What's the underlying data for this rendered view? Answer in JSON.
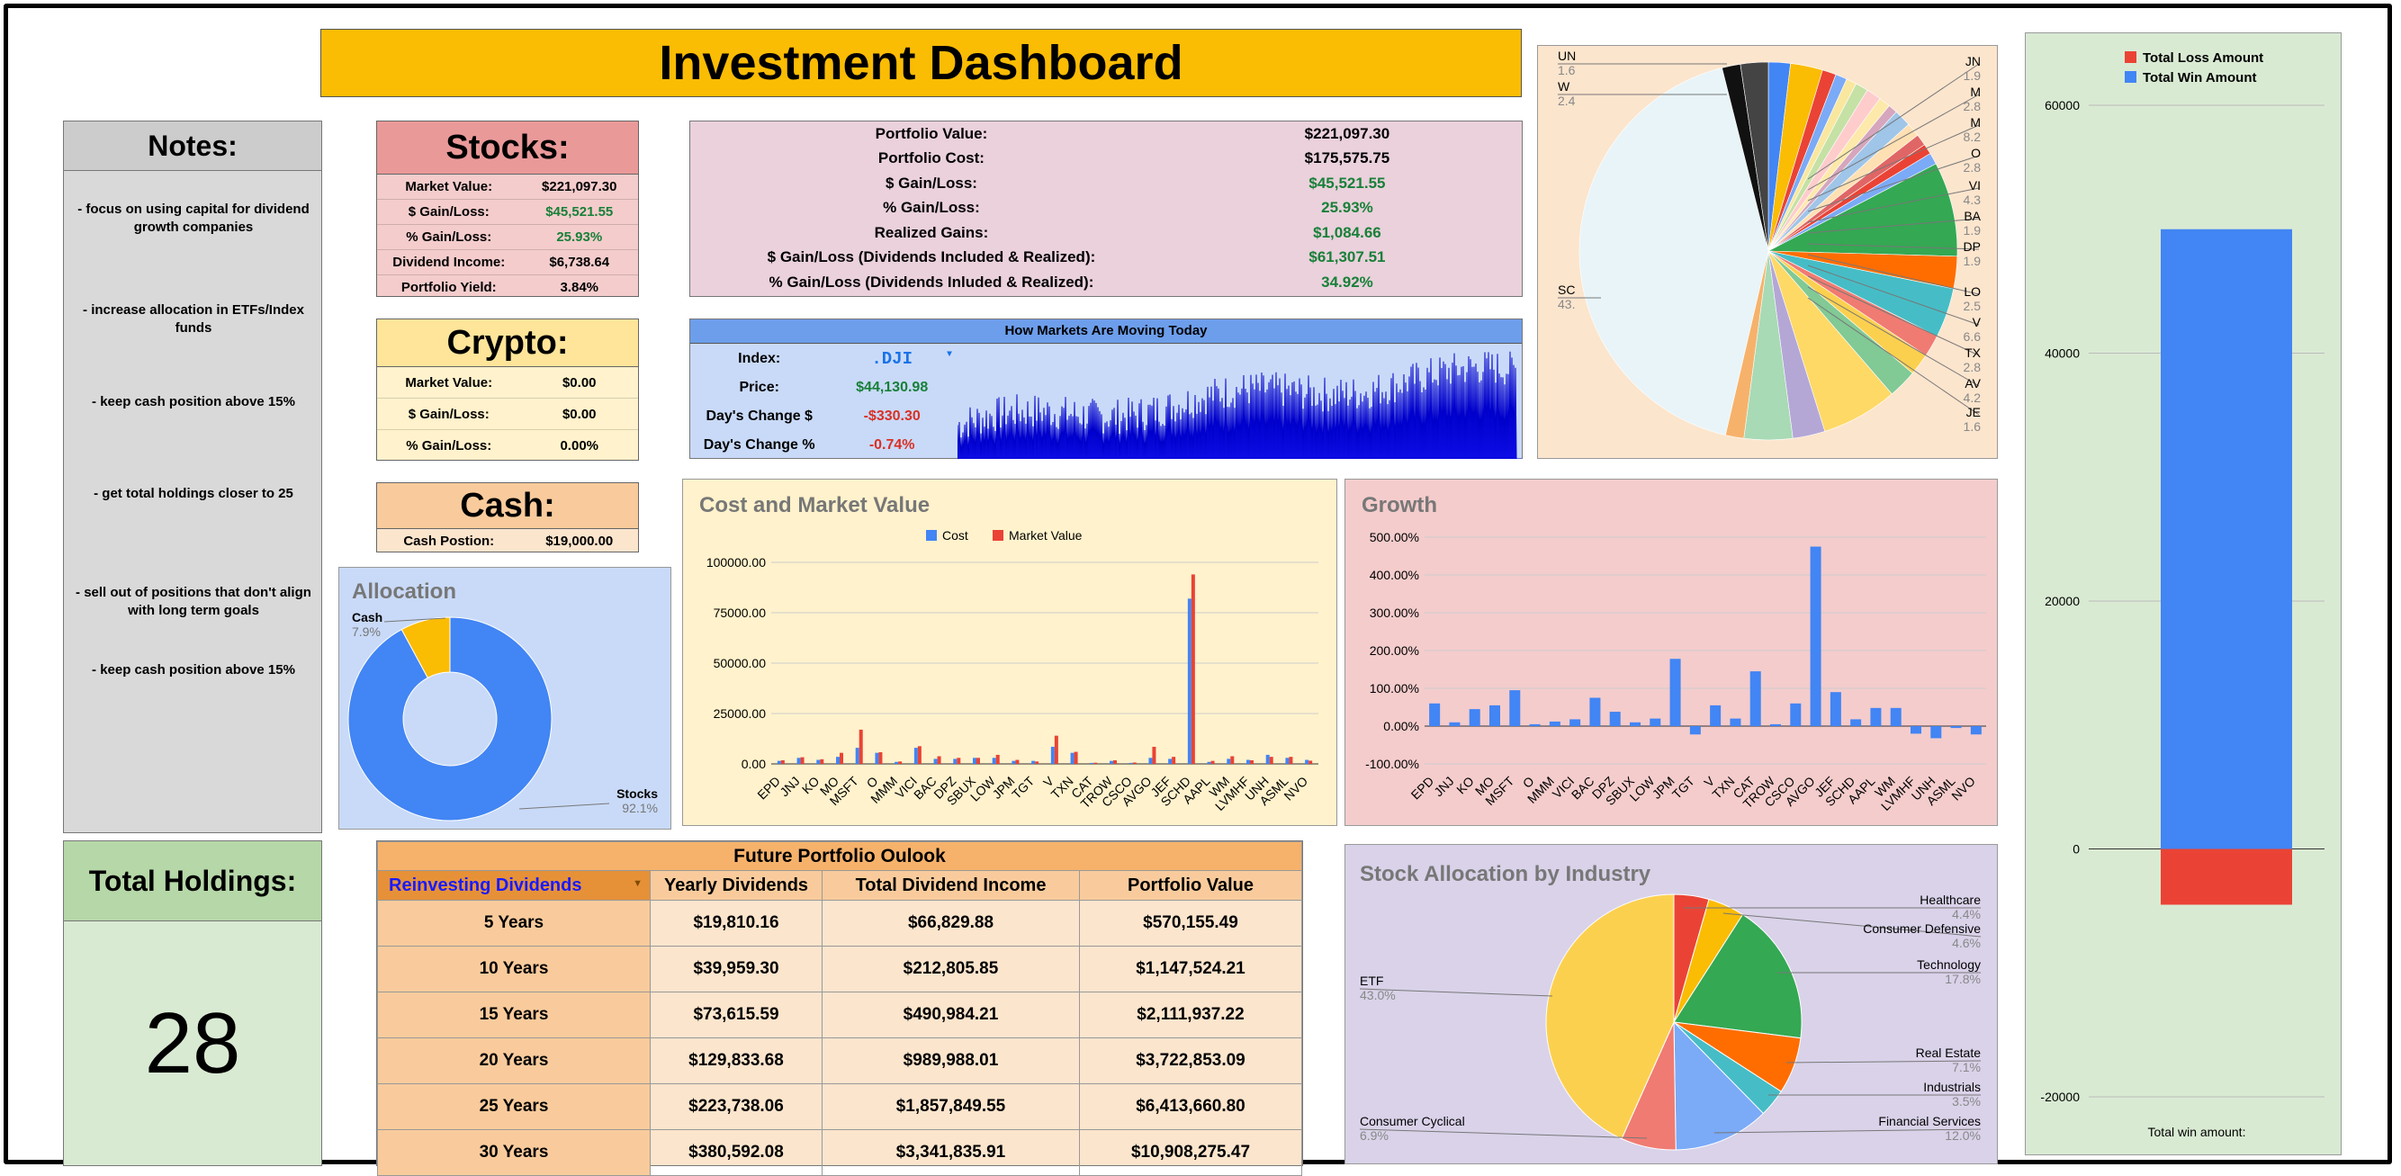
{
  "dashboard": {
    "title": "Investment Dashboard"
  },
  "notes": {
    "title": "Notes:",
    "items": [
      "- focus on using capital for dividend growth companies",
      "- increase allocation in ETFs/Index funds",
      "- keep cash position above 15%",
      "- get total holdings closer to 25",
      "- sell out of positions that don't align with long term goals",
      "- keep cash position above 15%"
    ]
  },
  "total_holdings": {
    "label": "Total Holdings:",
    "value": "28"
  },
  "stocks": {
    "title": "Stocks:",
    "rows": [
      {
        "k": "Market Value:",
        "v": "$221,097.30"
      },
      {
        "k": "$ Gain/Loss:",
        "v": "$45,521.55"
      },
      {
        "k": "% Gain/Loss:",
        "v": "25.93%"
      },
      {
        "k": "Dividend Income:",
        "v": "$6,738.64"
      },
      {
        "k": "Portfolio Yield:",
        "v": "3.84%"
      }
    ]
  },
  "crypto": {
    "title": "Crypto:",
    "rows": [
      {
        "k": "Market Value:",
        "v": "$0.00"
      },
      {
        "k": "$ Gain/Loss:",
        "v": "$0.00"
      },
      {
        "k": "% Gain/Loss:",
        "v": "0.00%"
      }
    ]
  },
  "cash": {
    "title": "Cash:",
    "row": {
      "k": "Cash Postion:",
      "v": "$19,000.00"
    }
  },
  "portfolio": {
    "rows": [
      {
        "k": "Portfolio Value:",
        "v": "$221,097.30"
      },
      {
        "k": "Portfolio Cost:",
        "v": "$175,575.75"
      },
      {
        "k": "$ Gain/Loss:",
        "v": "$45,521.55"
      },
      {
        "k": "% Gain/Loss:",
        "v": "25.93%"
      },
      {
        "k": "Realized Gains:",
        "v": "$1,084.66"
      },
      {
        "k": "$ Gain/Loss (Dividends Included & Realized):",
        "v": "$61,307.51"
      },
      {
        "k": "% Gain/Loss (Dividends Inluded & Realized):",
        "v": "34.92%"
      }
    ]
  },
  "markets": {
    "title": "How Markets Are Moving Today",
    "index_label": "Index:",
    "index_value": ".DJI",
    "price_label": "Price:",
    "price_value": "$44,130.98",
    "change_label": "Day's Change $",
    "change_value": "-$330.30",
    "changep_label": "Day's Change %",
    "changep_value": "-0.74%"
  },
  "colors": {
    "green": "#188038",
    "red": "#d93025",
    "blue": "#4285f4",
    "orange": "#fbbc04"
  },
  "future": {
    "title": "Future Portfolio Oulook",
    "mode": "Reinvesting Dividends",
    "headers": [
      "Yearly Dividends",
      "Total Dividend Income",
      "Portfolio Value"
    ],
    "rows": [
      {
        "years": "5 Years",
        "yearly": "$19,810.16",
        "total": "$66,829.88",
        "value": "$570,155.49"
      },
      {
        "years": "10 Years",
        "yearly": "$39,959.30",
        "total": "$212,805.85",
        "value": "$1,147,524.21"
      },
      {
        "years": "15 Years",
        "yearly": "$73,615.59",
        "total": "$490,984.21",
        "value": "$2,111,937.22"
      },
      {
        "years": "20 Years",
        "yearly": "$129,833.68",
        "total": "$989,988.01",
        "value": "$3,722,853.09"
      },
      {
        "years": "25 Years",
        "yearly": "$223,738.06",
        "total": "$1,857,849.55",
        "value": "$6,413,660.80"
      },
      {
        "years": "30 Years",
        "yearly": "$380,592.08",
        "total": "$3,341,835.91",
        "value": "$10,908,275.47"
      }
    ]
  },
  "chart_data": [
    {
      "id": "allocation",
      "type": "pie",
      "title": "Allocation",
      "labels": [
        "Cash",
        "Stocks"
      ],
      "values": [
        7.9,
        92.1
      ],
      "value_labels": [
        "7.9%",
        "92.1%"
      ],
      "colors": [
        "#fbbc04",
        "#4285f4"
      ]
    },
    {
      "id": "cost_market",
      "type": "bar",
      "title": "Cost and Market Value",
      "legend": [
        "Cost",
        "Market Value"
      ],
      "categories": [
        "EPD",
        "JNJ",
        "KO",
        "MO",
        "MSFT",
        "O",
        "MMM",
        "VICI",
        "BAC",
        "DPZ",
        "SBUX",
        "LOW",
        "JPM",
        "TGT",
        "V",
        "TXN",
        "CAT",
        "TROW",
        "CSCO",
        "AVGO",
        "JEF",
        "SCHD",
        "AAPL",
        "WM",
        "LVMHF",
        "UNH",
        "ASML",
        "NVO"
      ],
      "series": [
        {
          "name": "Cost",
          "values": [
            1500,
            3000,
            2000,
            3500,
            8000,
            5500,
            1000,
            8000,
            2500,
            2500,
            3000,
            3000,
            1500,
            1500,
            8500,
            5500,
            500,
            1500,
            500,
            3000,
            2500,
            82000,
            1000,
            2500,
            2000,
            4500,
            3000,
            2000
          ]
        },
        {
          "name": "Market Value",
          "values": [
            1800,
            3300,
            2300,
            5500,
            17000,
            5800,
            1200,
            8800,
            3800,
            3000,
            3000,
            4500,
            2000,
            1200,
            14000,
            6000,
            600,
            1800,
            700,
            8500,
            3500,
            94000,
            1500,
            3800,
            1800,
            3500,
            3500,
            1600
          ]
        }
      ],
      "y_ticks": [
        "0.00",
        "25000.00",
        "50000.00",
        "75000.00",
        "100000.00"
      ],
      "ylim": [
        0,
        100000
      ]
    },
    {
      "id": "growth",
      "type": "bar",
      "title": "Growth",
      "categories": [
        "EPD",
        "JNJ",
        "KO",
        "MO",
        "MSFT",
        "O",
        "MMM",
        "VICI",
        "BAC",
        "DPZ",
        "SBUX",
        "LOW",
        "JPM",
        "TGT",
        "V",
        "TXN",
        "CAT",
        "TROW",
        "CSCO",
        "AVGO",
        "JEF",
        "SCHD",
        "AAPL",
        "WM",
        "LVMHF",
        "UNH",
        "ASML",
        "NVO"
      ],
      "values": [
        60,
        10,
        45,
        55,
        95,
        5,
        12,
        18,
        75,
        38,
        10,
        20,
        178,
        -22,
        55,
        20,
        145,
        5,
        60,
        475,
        90,
        18,
        48,
        48,
        -20,
        -32,
        -5,
        -22
      ],
      "y_ticks": [
        "500.00%",
        "400.00%",
        "300.00%",
        "200.00%",
        "100.00%",
        "0.00%",
        "-100.00%"
      ],
      "ylim": [
        -100,
        500
      ]
    },
    {
      "id": "holdings_pie",
      "type": "pie",
      "labels": [
        "JN",
        "M",
        "M",
        "O",
        "VI",
        "BA",
        "DP",
        "LO",
        "V",
        "TX",
        "AV",
        "JE",
        "SC",
        "UN",
        "W"
      ],
      "value_labels": [
        "1.9",
        "2.8",
        "8.2",
        "2.8",
        "4.3",
        "1.9",
        "1.9",
        "2.5",
        "6.6",
        "2.8",
        "4.2",
        "1.6",
        "43.",
        "1.6",
        "2.4"
      ]
    },
    {
      "id": "win_loss",
      "type": "bar",
      "legend": [
        "Total Loss Amount",
        "Total Win Amount"
      ],
      "values": {
        "Total Loss Amount": -4500,
        "Total Win Amount": 50000
      },
      "y_ticks": [
        "60000",
        "40000",
        "20000",
        "0",
        "-20000"
      ],
      "ylim": [
        -20000,
        60000
      ],
      "xlabel": "Total win amount:"
    },
    {
      "id": "industry",
      "type": "pie",
      "title": "Stock Allocation by Industry",
      "labels": [
        "Healthcare",
        "Consumer Defensive",
        "Technology",
        "Real Estate",
        "Industrials",
        "Financial Services",
        "Consumer Cyclical",
        "ETF"
      ],
      "values": [
        4.4,
        4.6,
        17.8,
        7.1,
        3.5,
        12.0,
        6.9,
        43.0
      ],
      "value_labels": [
        "4.4%",
        "4.6%",
        "17.8%",
        "7.1%",
        "3.5%",
        "12.0%",
        "6.9%",
        "43.0%"
      ],
      "colors": [
        "#ea4335",
        "#fbbc04",
        "#34a853",
        "#ff6d01",
        "#46bdc6",
        "#7baaf7",
        "#f07b72",
        "#fcd04f"
      ]
    }
  ]
}
